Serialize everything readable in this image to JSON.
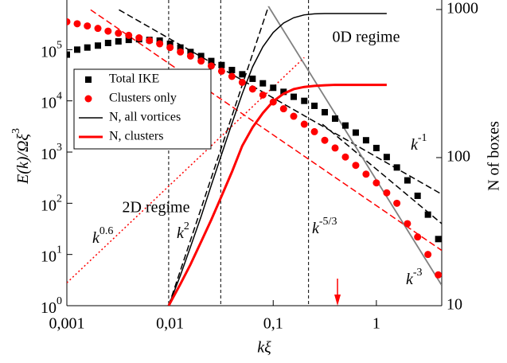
{
  "chart_data": {
    "type": "scatter",
    "xlabel": "kξ",
    "ylabel": {
      "text": "E(k)/Ωξ",
      "exp": "3"
    },
    "y2label": "N of boxes",
    "log_x": true,
    "log_y": true,
    "log_y2": true,
    "xlim": [
      0.001,
      4.3
    ],
    "ylim": [
      1,
      700000
    ],
    "y2lim": [
      10,
      1050
    ],
    "xticks": [
      {
        "value": 0.001,
        "label": "0,001"
      },
      {
        "value": 0.01,
        "label": "0,01"
      },
      {
        "value": 0.1,
        "label": "0,1"
      },
      1
    ],
    "yticks": [
      {
        "value": 1,
        "base": "10",
        "exp": "0"
      },
      {
        "value": 10,
        "base": "10",
        "exp": "1"
      },
      {
        "value": 100,
        "base": "10",
        "exp": "2"
      },
      {
        "value": 1000,
        "base": "10",
        "exp": "3"
      },
      {
        "value": 10000,
        "base": "10",
        "exp": "4"
      },
      {
        "value": 100000,
        "base": "10",
        "exp": "5"
      }
    ],
    "y2ticks": [
      10,
      100,
      1000
    ],
    "series": [
      {
        "name": "Total IKE",
        "type": "scatter",
        "marker": "square",
        "color": "#000000",
        "x": [
          0.001,
          0.00126,
          0.00158,
          0.002,
          0.00251,
          0.00316,
          0.00398,
          0.00501,
          0.00631,
          0.00794,
          0.01,
          0.0126,
          0.0158,
          0.02,
          0.0251,
          0.0316,
          0.0398,
          0.0501,
          0.0631,
          0.0794,
          0.1,
          0.126,
          0.158,
          0.2,
          0.251,
          0.316,
          0.398,
          0.501,
          0.631,
          0.794,
          1,
          1.26,
          1.58,
          2,
          2.51,
          3.16,
          3.98
        ],
        "values": [
          80000,
          100000,
          110000,
          120000,
          135000,
          145000,
          155000,
          160000,
          155000,
          150000,
          130000,
          110000,
          90000,
          75000,
          60000,
          50000,
          40000,
          33000,
          27000,
          22000,
          18000,
          15000,
          12000,
          10000,
          8000,
          6000,
          4500,
          3300,
          2400,
          1700,
          1200,
          800,
          500,
          280,
          140,
          60,
          20
        ]
      },
      {
        "name": "Clusters only",
        "type": "scatter",
        "marker": "circle",
        "color": "#ff0000",
        "x": [
          0.001,
          0.00126,
          0.00158,
          0.002,
          0.00251,
          0.00316,
          0.00398,
          0.00501,
          0.00631,
          0.00794,
          0.01,
          0.0126,
          0.0158,
          0.02,
          0.0251,
          0.0316,
          0.0398,
          0.0501,
          0.0631,
          0.0794,
          0.1,
          0.126,
          0.158,
          0.2,
          0.251,
          0.316,
          0.398,
          0.501,
          0.631,
          0.794,
          1,
          1.26,
          1.58,
          2,
          2.51,
          3.16,
          3.98
        ],
        "values": [
          350000,
          320000,
          290000,
          260000,
          230000,
          210000,
          190000,
          170000,
          150000,
          130000,
          110000,
          90000,
          75000,
          60000,
          48000,
          38000,
          30000,
          23000,
          17000,
          13000,
          9500,
          7000,
          5000,
          3500,
          2500,
          1700,
          1200,
          800,
          550,
          370,
          250,
          160,
          100,
          40,
          22,
          10,
          4
        ]
      },
      {
        "name": "N, all vortices",
        "type": "line",
        "axis": "y2",
        "color": "#000000",
        "width": 1.5,
        "x": [
          0.0097,
          0.0126,
          0.0158,
          0.02,
          0.0251,
          0.0316,
          0.0398,
          0.0501,
          0.0631,
          0.0794,
          0.1,
          0.126,
          0.158,
          0.2,
          0.251,
          0.316,
          0.398,
          0.501,
          0.631,
          0.794,
          1,
          1.26
        ],
        "values": [
          10,
          16,
          25,
          40,
          65,
          105,
          170,
          270,
          410,
          560,
          700,
          810,
          880,
          920,
          935,
          940,
          940,
          940,
          940,
          940,
          940,
          940
        ]
      },
      {
        "name": "N, clusters",
        "type": "line",
        "axis": "y2",
        "color": "#ff0000",
        "width": 3,
        "x": [
          0.0097,
          0.0126,
          0.0158,
          0.02,
          0.0251,
          0.0316,
          0.0398,
          0.0501,
          0.0631,
          0.0794,
          0.1,
          0.126,
          0.158,
          0.2,
          0.251,
          0.316,
          0.398,
          0.501,
          0.631,
          0.794,
          1,
          1.26
        ],
        "values": [
          10,
          14,
          19,
          27,
          38,
          55,
          80,
          120,
          160,
          200,
          240,
          270,
          290,
          300,
          305,
          308,
          310,
          310,
          310,
          310,
          310,
          310
        ]
      }
    ],
    "guides": [
      {
        "label": {
          "base": "k",
          "exp": "-1"
        },
        "x": [
          0.0032,
          4.3
        ],
        "y": [
          600000,
          150
        ],
        "color": "#000000",
        "dash": "dashed"
      },
      {
        "label": {
          "base": "k",
          "exp": "-5/3"
        },
        "x": [
          0.3,
          4.3
        ],
        "y": [
          3500,
          40
        ],
        "color": "#000000",
        "dash": "dashed"
      },
      {
        "x": [
          0.0017,
          4.3
        ],
        "y": [
          600000,
          12
        ],
        "color": "#ff0000",
        "dash": "dashed"
      },
      {
        "label": {
          "base": "k",
          "exp": "2"
        },
        "x": [
          0.0097,
          0.09
        ],
        "y": [
          1,
          700000
        ],
        "color": "#000000",
        "dash": "dashed"
      },
      {
        "label": {
          "base": "k",
          "exp": "0.6"
        },
        "x": [
          0.001,
          0.2
        ],
        "y": [
          2.8,
          70000
        ],
        "color": "#ff0000",
        "dash": "dotted"
      },
      {
        "label": {
          "base": "k",
          "exp": "-3"
        },
        "x": [
          0.09,
          4.3
        ],
        "y": [
          700000,
          2.5
        ],
        "color": "#808080",
        "dash": "solid"
      }
    ],
    "vlines": [
      0.0097,
      0.031,
      0.22
    ],
    "arrow_x": 0.42,
    "arrow_color": "#ff0000",
    "annotations": [
      "0D regime",
      "2D regime"
    ],
    "legend": "upper left"
  }
}
